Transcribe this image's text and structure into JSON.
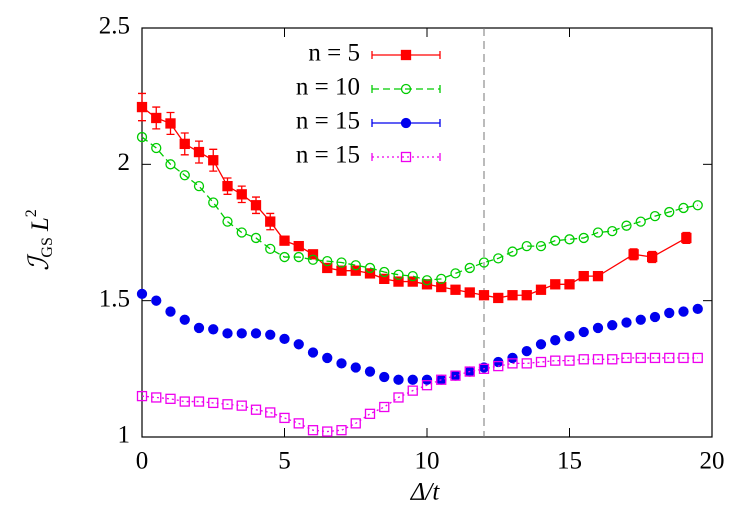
{
  "chart_data": {
    "type": "line",
    "xlabel": "Δ/t",
    "ylabel": [
      "ℐ",
      "GS",
      "L",
      "2"
    ],
    "xlim": [
      0,
      20
    ],
    "xticks": [
      0,
      5,
      10,
      15,
      20
    ],
    "ylim": [
      1,
      2.5
    ],
    "yticks": [
      1,
      1.5,
      2,
      2.5
    ],
    "vline": 12,
    "legend": "top-center",
    "series": [
      {
        "name": "n = 5",
        "color": "#ff0000",
        "marker": "square-filled",
        "dash": "solid",
        "x": [
          0,
          0.5,
          1,
          1.5,
          2,
          2.5,
          3,
          3.5,
          4,
          4.5,
          5,
          5.5,
          6,
          6.5,
          7,
          7.5,
          8,
          8.5,
          9,
          9.5,
          10,
          10.5,
          11,
          11.5,
          12,
          12.5,
          13,
          13.5,
          14,
          14.5,
          15,
          15.5,
          16,
          17.25,
          17.9,
          19.1
        ],
        "values": [
          2.21,
          2.17,
          2.15,
          2.075,
          2.045,
          2.015,
          1.92,
          1.89,
          1.85,
          1.79,
          1.72,
          1.7,
          1.67,
          1.62,
          1.61,
          1.61,
          1.6,
          1.58,
          1.57,
          1.57,
          1.56,
          1.55,
          1.54,
          1.53,
          1.52,
          1.51,
          1.52,
          1.52,
          1.54,
          1.56,
          1.56,
          1.59,
          1.59,
          1.67,
          1.66,
          1.73
        ],
        "errors": [
          0.05,
          0.04,
          0.04,
          0.04,
          0.04,
          0.04,
          0.03,
          0.03,
          0.03,
          0.03,
          0.015,
          0.01,
          0.01,
          0.01,
          0.01,
          0.01,
          0.01,
          0.01,
          0.01,
          0.01,
          0.01,
          0.01,
          0.01,
          0.01,
          0.01,
          0.01,
          0.01,
          0.01,
          0.01,
          0.01,
          0.01,
          0.01,
          0.01,
          0.02,
          0.02,
          0.02
        ]
      },
      {
        "name": "n = 10",
        "color": "#00cc00",
        "marker": "circle-open",
        "dash": "dashed",
        "x": [
          0,
          0.5,
          1,
          1.5,
          2,
          2.5,
          3,
          3.5,
          4,
          4.5,
          5,
          5.5,
          6,
          6.5,
          7,
          7.5,
          8,
          8.5,
          9,
          9.5,
          10,
          10.5,
          11,
          11.5,
          12,
          12.5,
          13,
          13.5,
          14,
          14.5,
          15,
          15.5,
          16,
          16.5,
          17,
          17.5,
          18,
          18.5,
          19,
          19.5
        ],
        "values": [
          2.1,
          2.06,
          2.0,
          1.96,
          1.92,
          1.86,
          1.79,
          1.75,
          1.73,
          1.69,
          1.66,
          1.66,
          1.65,
          1.645,
          1.64,
          1.63,
          1.62,
          1.605,
          1.595,
          1.59,
          1.575,
          1.58,
          1.6,
          1.62,
          1.64,
          1.655,
          1.68,
          1.7,
          1.7,
          1.72,
          1.725,
          1.73,
          1.75,
          1.755,
          1.775,
          1.79,
          1.81,
          1.825,
          1.84,
          1.85
        ]
      },
      {
        "name": "n = 15",
        "color": "#0000ee",
        "marker": "circle-filled",
        "dash": "none",
        "x": [
          0,
          0.5,
          1,
          1.5,
          2,
          2.5,
          3,
          3.5,
          4,
          4.5,
          5,
          5.5,
          6,
          6.5,
          7,
          7.5,
          8,
          8.5,
          9,
          9.5,
          10,
          10.5,
          11,
          11.5,
          12,
          12.5,
          13,
          13.5,
          14,
          14.5,
          15,
          15.5,
          16,
          16.5,
          17,
          17.5,
          18,
          18.5,
          19,
          19.5
        ],
        "values": [
          1.525,
          1.5,
          1.46,
          1.43,
          1.4,
          1.395,
          1.38,
          1.38,
          1.38,
          1.375,
          1.36,
          1.34,
          1.31,
          1.29,
          1.27,
          1.255,
          1.24,
          1.22,
          1.21,
          1.21,
          1.21,
          1.21,
          1.225,
          1.24,
          1.255,
          1.275,
          1.29,
          1.315,
          1.34,
          1.355,
          1.37,
          1.385,
          1.4,
          1.41,
          1.42,
          1.43,
          1.44,
          1.455,
          1.46,
          1.47
        ]
      },
      {
        "name": "n = 15",
        "color": "#ee00ee",
        "marker": "square-open",
        "dash": "dotted",
        "x": [
          0,
          0.5,
          1,
          1.5,
          2,
          2.5,
          3,
          3.5,
          4,
          4.5,
          5,
          5.5,
          6,
          6.5,
          7,
          7.5,
          8,
          8.5,
          9,
          9.5,
          10,
          10.5,
          11,
          11.5,
          12,
          12.5,
          13,
          13.5,
          14,
          14.5,
          15,
          15.5,
          16,
          16.5,
          17,
          17.5,
          18,
          18.5,
          19,
          19.5
        ],
        "values": [
          1.15,
          1.145,
          1.14,
          1.13,
          1.13,
          1.125,
          1.12,
          1.115,
          1.1,
          1.09,
          1.07,
          1.05,
          1.025,
          1.02,
          1.025,
          1.05,
          1.085,
          1.11,
          1.145,
          1.17,
          1.19,
          1.21,
          1.225,
          1.24,
          1.25,
          1.26,
          1.27,
          1.27,
          1.275,
          1.28,
          1.28,
          1.285,
          1.285,
          1.285,
          1.29,
          1.29,
          1.29,
          1.29,
          1.29,
          1.29
        ]
      }
    ]
  }
}
